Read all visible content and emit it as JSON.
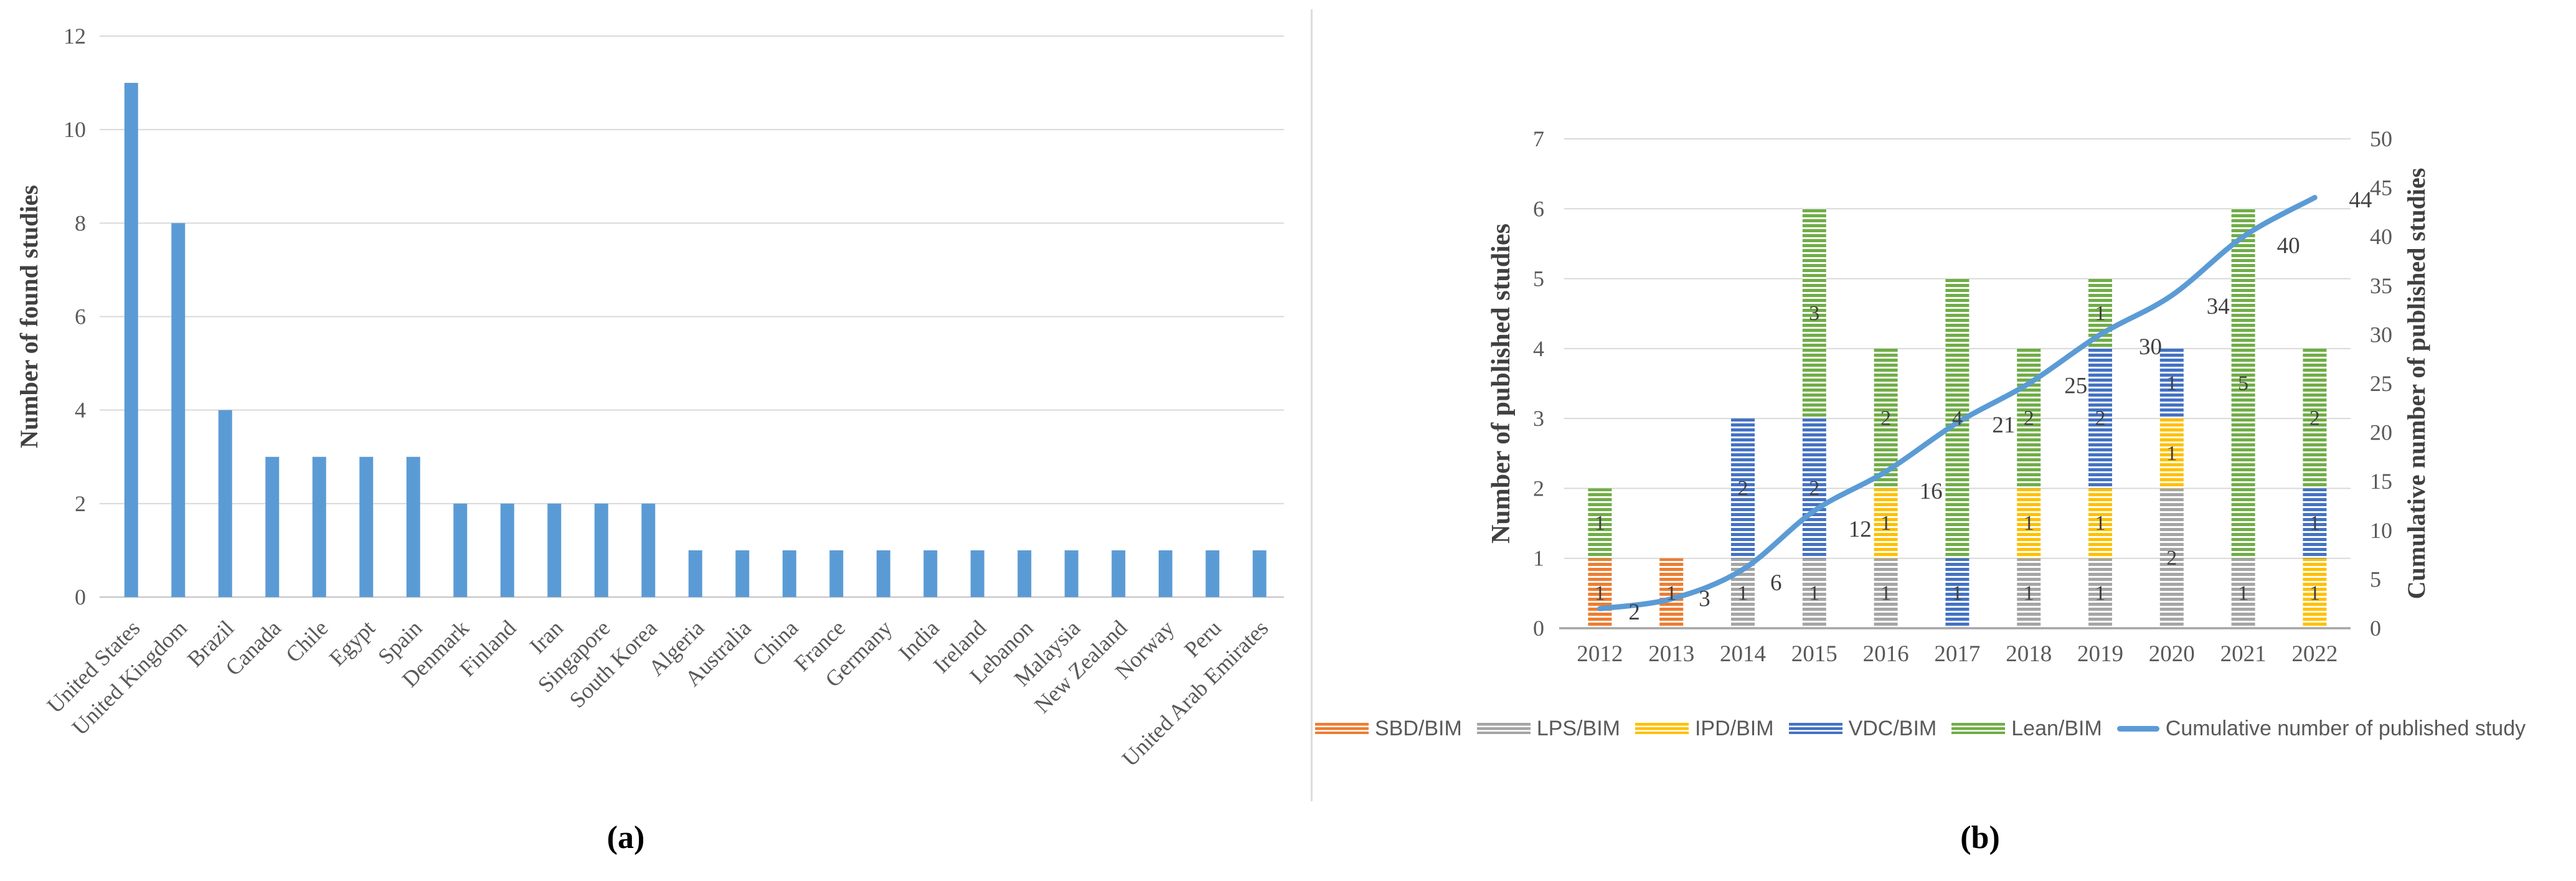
{
  "figure": {
    "caption_a": "(a)",
    "caption_b": "(b)"
  },
  "colors": {
    "grid": "#d9d9d9",
    "axis_a": "#c9c9c9",
    "axis_b": "#a6a6a6",
    "tick_text": "#595959",
    "title_text": "#404040",
    "label_text": "#404040"
  },
  "chart_data": [
    {
      "type": "bar",
      "panel": "a",
      "title": "",
      "xlabel": "",
      "ylabel": "Number of found studies",
      "ylim": [
        0,
        12
      ],
      "yticks": [
        0,
        2,
        4,
        6,
        8,
        10,
        12
      ],
      "grid": true,
      "bar_color": "#5b9bd5",
      "categories": [
        "United States",
        "United Kingdom",
        "Brazil",
        "Canada",
        "Chile",
        "Egypt",
        "Spain",
        "Denmark",
        "Finland",
        "Iran",
        "Singapore",
        "South Korea",
        "Algeria",
        "Australia",
        "China",
        "France",
        "Germany",
        "India",
        "Ireland",
        "Lebanon",
        "Malaysia",
        "New Zealand",
        "Norway",
        "Peru",
        "United Arab Emirates"
      ],
      "values": [
        11,
        8,
        4,
        3,
        3,
        3,
        3,
        2,
        2,
        2,
        2,
        2,
        1,
        1,
        1,
        1,
        1,
        1,
        1,
        1,
        1,
        1,
        1,
        1,
        1
      ]
    },
    {
      "type": "combo_stacked_bar_line",
      "panel": "b",
      "title": "",
      "xlabel": "",
      "ylabel_left": "Number of published studies",
      "ylabel_right": "Cumulative  number of published studies",
      "ylim_left": [
        0,
        7
      ],
      "yticks_left": [
        0,
        1,
        2,
        3,
        4,
        5,
        6,
        7
      ],
      "ylim_right": [
        0,
        50
      ],
      "yticks_right": [
        0,
        5,
        10,
        15,
        20,
        25,
        30,
        35,
        40,
        45,
        50
      ],
      "grid": true,
      "bar_pattern": "horizontal-stripes",
      "categories": [
        "2012",
        "2013",
        "2014",
        "2015",
        "2016",
        "2017",
        "2018",
        "2019",
        "2020",
        "2021",
        "2022"
      ],
      "series": [
        {
          "name": "SBD/BIM",
          "color": "#ed7d31",
          "values": [
            1,
            1,
            0,
            0,
            0,
            0,
            0,
            0,
            0,
            0,
            0
          ]
        },
        {
          "name": "LPS/BIM",
          "color": "#a5a5a5",
          "values": [
            0,
            0,
            1,
            1,
            1,
            0,
            1,
            1,
            2,
            1,
            0
          ]
        },
        {
          "name": "IPD/BIM",
          "color": "#ffc000",
          "values": [
            0,
            0,
            0,
            0,
            1,
            0,
            1,
            1,
            1,
            0,
            1
          ]
        },
        {
          "name": "VDC/BIM",
          "color": "#4472c4",
          "values": [
            0,
            0,
            2,
            2,
            0,
            1,
            0,
            2,
            1,
            0,
            1
          ]
        },
        {
          "name": "Lean/BIM",
          "color": "#70ad47",
          "values": [
            1,
            0,
            0,
            3,
            2,
            4,
            2,
            1,
            0,
            5,
            2
          ]
        }
      ],
      "line": {
        "name": "Cumulative number of published study",
        "color": "#5b9bd5",
        "values": [
          2,
          3,
          6,
          12,
          16,
          21,
          25,
          30,
          34,
          40,
          44
        ],
        "axis": "right",
        "smoothed": true,
        "data_labels": [
          2,
          3,
          6,
          12,
          16,
          21,
          25,
          30,
          34,
          40,
          44
        ]
      }
    }
  ],
  "legend": {
    "position": "bottom-of-panel-b",
    "items": [
      {
        "label": "SBD/BIM",
        "color": "#ed7d31",
        "type": "patterned-box"
      },
      {
        "label": "LPS/BIM",
        "color": "#a5a5a5",
        "type": "patterned-box"
      },
      {
        "label": "IPD/BIM",
        "color": "#ffc000",
        "type": "patterned-box"
      },
      {
        "label": "VDC/BIM",
        "color": "#4472c4",
        "type": "patterned-box"
      },
      {
        "label": "Lean/BIM",
        "color": "#70ad47",
        "type": "patterned-box"
      },
      {
        "label": "Cumulative number of published study",
        "color": "#5b9bd5",
        "type": "line"
      }
    ]
  }
}
